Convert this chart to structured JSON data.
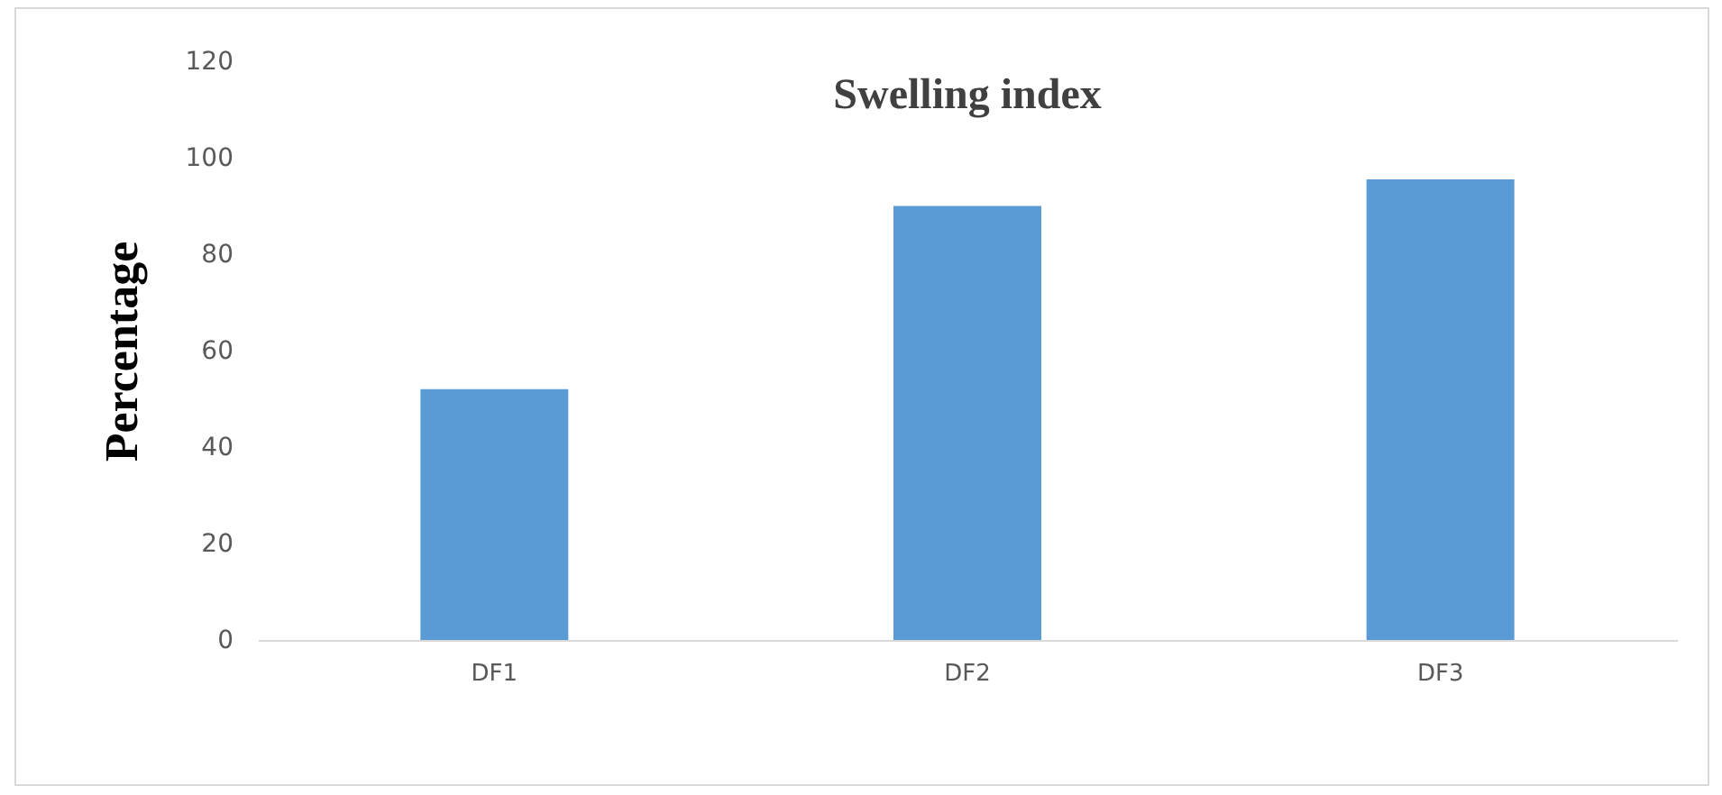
{
  "chart_data": {
    "type": "bar",
    "title": "Swelling index",
    "ylabel": "Percentage",
    "categories": [
      "DF1",
      "DF2",
      "DF3"
    ],
    "values": [
      52,
      90,
      95.5
    ],
    "color": "#5b9bd5",
    "ylim": [
      0,
      120
    ],
    "yticks": [
      0,
      20,
      40,
      60,
      80,
      100,
      120
    ],
    "grid": false
  }
}
